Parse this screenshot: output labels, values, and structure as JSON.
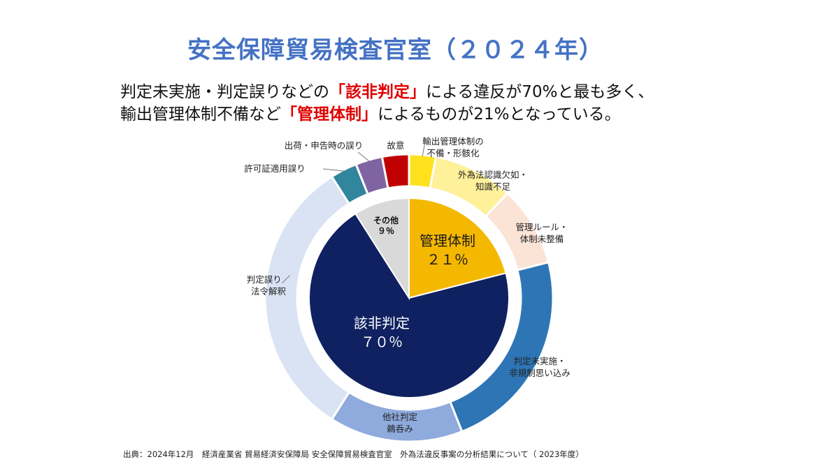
{
  "title": "安全保障貿易検査官室（２０２４年）",
  "lead": {
    "line1_pre": "判定未実施・判定誤りなどの",
    "line1_hl": "「該非判定」",
    "line1_post": "による違反が70%と最も多く、",
    "line2_pre": "輸出管理体制不備など",
    "line2_hl": "「管理体制」",
    "line2_post": "によるものが21%となっている。"
  },
  "chart_data": {
    "type": "pie",
    "variant": "nested-donut",
    "inner": [
      {
        "key": "kanri",
        "label": "管理体制",
        "value_label": "２１％",
        "value": 21,
        "color": "#f5b800"
      },
      {
        "key": "gaihi",
        "label": "該非判定",
        "value_label": "７０％",
        "value": 70,
        "color": "#0f2160"
      },
      {
        "key": "other",
        "label": "その他",
        "value_label": "９％",
        "value": 9,
        "color": "#d9d9d9"
      }
    ],
    "outer": [
      {
        "key": "k1",
        "parent": "kanri",
        "label": [
          "輸出管理体制の",
          "不備・形骸化"
        ],
        "value": 3,
        "color": "#ffe11e"
      },
      {
        "key": "k2",
        "parent": "kanri",
        "label": [
          "外為法認識欠如・",
          "知識不足"
        ],
        "value": 9,
        "color": "#fff09a"
      },
      {
        "key": "k3",
        "parent": "kanri",
        "label": [
          "管理ルール・",
          "体制未整備"
        ],
        "value": 9,
        "color": "#fbe3d6"
      },
      {
        "key": "g1",
        "parent": "gaihi",
        "label": [
          "判定未実施・",
          "非規制思い込み"
        ],
        "value": 23,
        "color": "#2e75b6"
      },
      {
        "key": "g2",
        "parent": "gaihi",
        "label": [
          "他社判定",
          "鵜呑み"
        ],
        "value": 15,
        "color": "#8faadc"
      },
      {
        "key": "g3",
        "parent": "gaihi",
        "label": [
          "判定誤り／",
          "法令解釈"
        ],
        "value": 32,
        "color": "#dae3f3"
      },
      {
        "key": "o1",
        "parent": "other",
        "label": [
          "許可証適用誤り"
        ],
        "value": 3,
        "color": "#31859c"
      },
      {
        "key": "o2",
        "parent": "other",
        "label": [
          "出荷・申告時の誤り"
        ],
        "value": 3,
        "color": "#8064a2"
      },
      {
        "key": "o3",
        "parent": "other",
        "label": [
          "故意"
        ],
        "value": 3,
        "color": "#c00000"
      }
    ]
  },
  "source": "出典：2024年12月　経済産業省 貿易経済安保障局 安全保障貿易検査官室　外為法違反事案の分析結果について（ 2023年度）"
}
